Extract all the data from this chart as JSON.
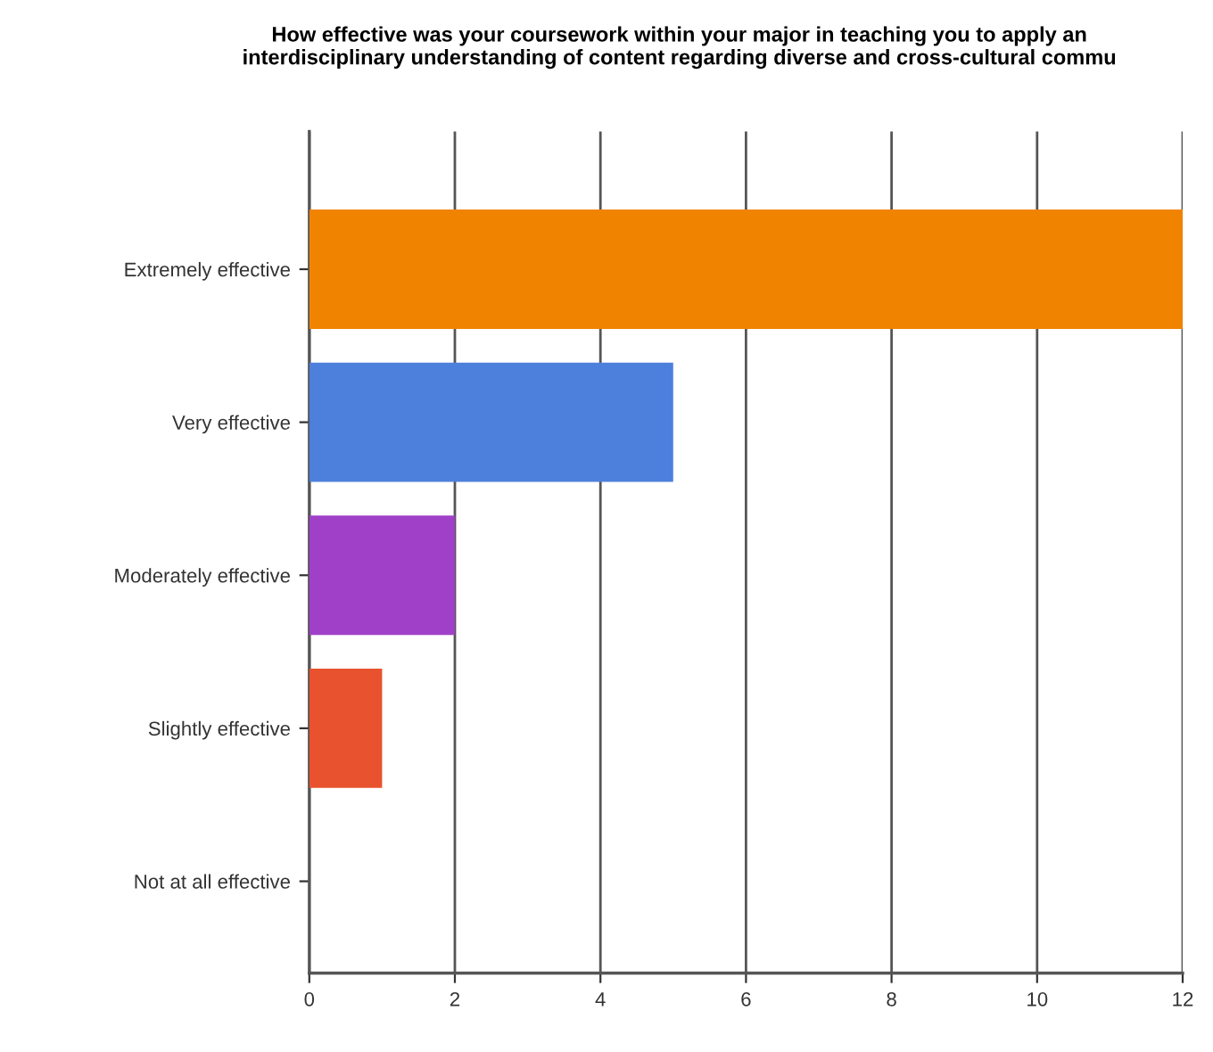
{
  "chart_data": {
    "type": "bar",
    "orientation": "horizontal",
    "title": "How effective was your coursework within your major in teaching you to apply an\ninterdisciplinary understanding of content regarding diverse and cross-cultural commu",
    "categories": [
      "Extremely effective",
      "Very effective",
      "Moderately effective",
      "Slightly effective",
      "Not at all effective"
    ],
    "values": [
      12,
      5,
      2,
      1,
      0
    ],
    "colors": [
      "#f08400",
      "#4d80dc",
      "#a040c8",
      "#e8522e",
      "#888888"
    ],
    "xlim": [
      0,
      12
    ],
    "xticks": [
      0,
      2,
      4,
      6,
      8,
      10,
      12
    ],
    "grid": "x",
    "legend": false
  }
}
